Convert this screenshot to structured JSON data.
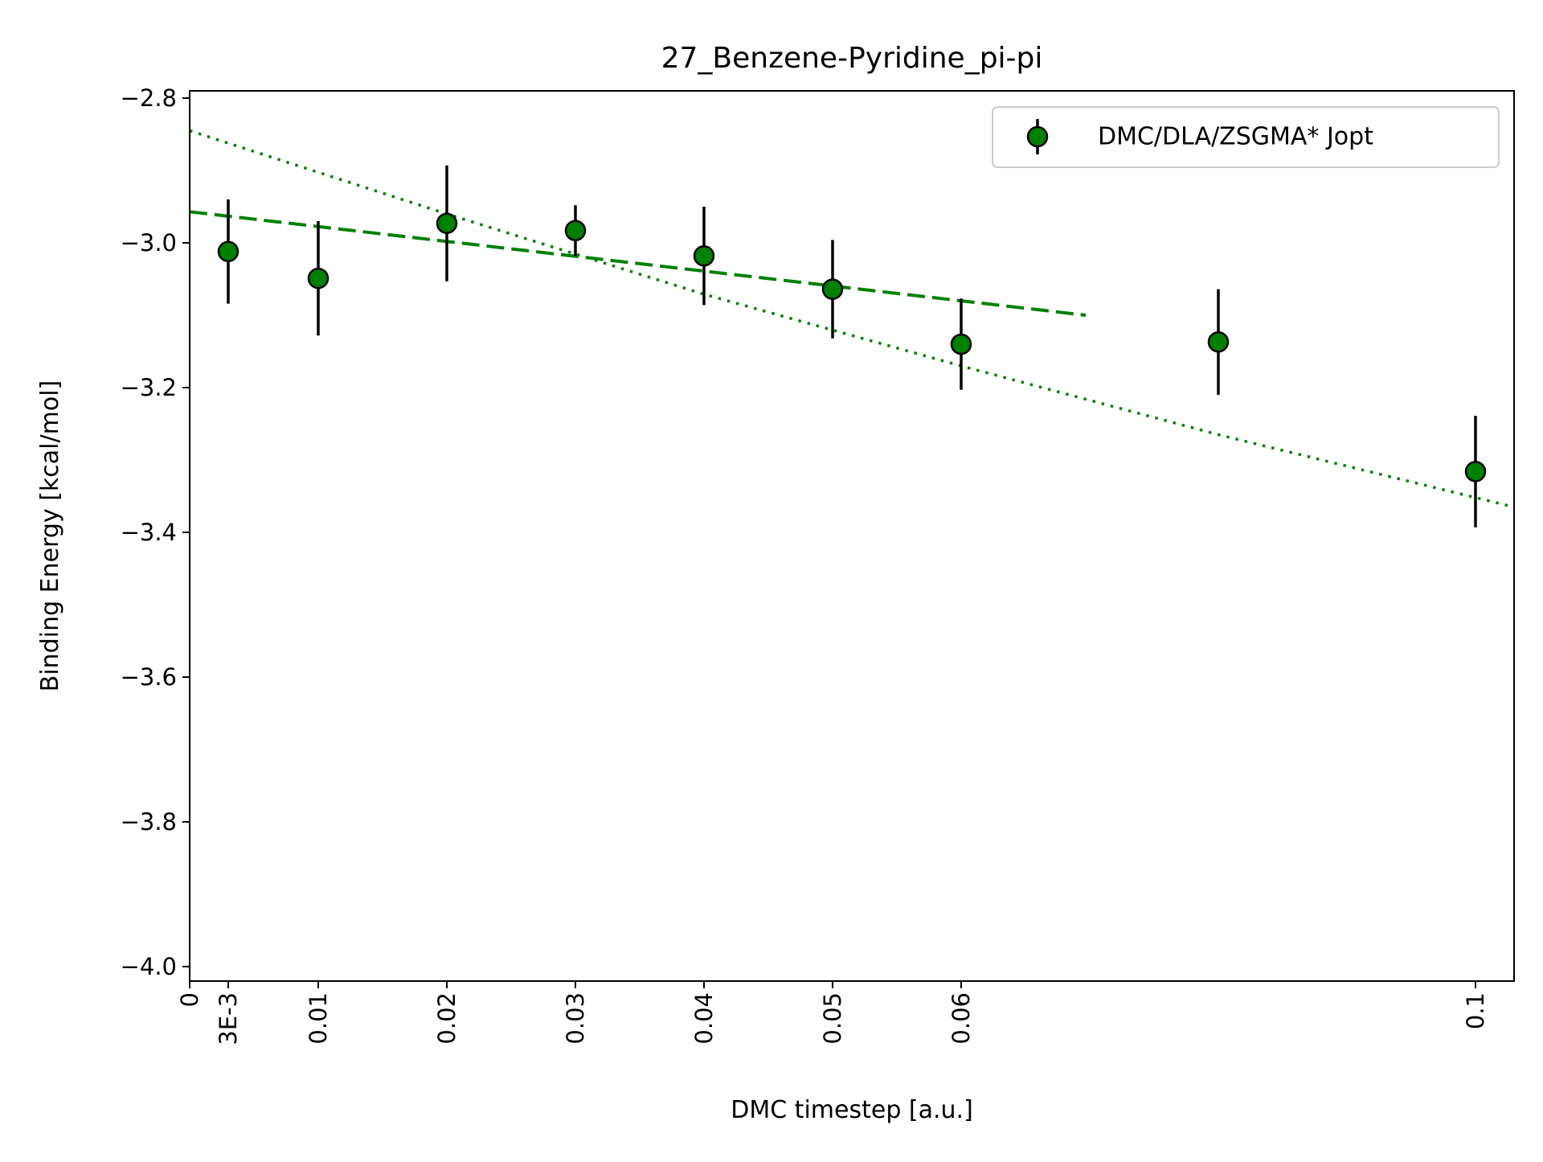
{
  "chart_data": {
    "type": "scatter",
    "title": "27_Benzene-Pyridine_pi-pi",
    "xlabel": "DMC timestep [a.u.]",
    "ylabel": "Binding Energy [kcal/mol]",
    "xlim": [
      0,
      0.103
    ],
    "ylim": [
      -4.02,
      -2.79
    ],
    "xticks": [
      {
        "value": 0,
        "label": "0"
      },
      {
        "value": 0.003,
        "label": "3E-3"
      },
      {
        "value": 0.01,
        "label": "0.01"
      },
      {
        "value": 0.02,
        "label": "0.02"
      },
      {
        "value": 0.03,
        "label": "0.03"
      },
      {
        "value": 0.04,
        "label": "0.04"
      },
      {
        "value": 0.05,
        "label": "0.05"
      },
      {
        "value": 0.06,
        "label": "0.06"
      },
      {
        "value": 0.1,
        "label": "0.1"
      }
    ],
    "yticks": [
      {
        "value": -2.8,
        "label": "−2.8"
      },
      {
        "value": -3.0,
        "label": "−3.0"
      },
      {
        "value": -3.2,
        "label": "−3.2"
      },
      {
        "value": -3.4,
        "label": "−3.4"
      },
      {
        "value": -3.6,
        "label": "−3.6"
      },
      {
        "value": -3.8,
        "label": "−3.8"
      },
      {
        "value": -4.0,
        "label": "−4.0"
      }
    ],
    "series": [
      {
        "name": "DMC/DLA/ZSGMA* Jopt",
        "color": "#008000",
        "edge_color": "#000000",
        "error_color": "#000000",
        "points": [
          {
            "x": 0.003,
            "y": -3.012,
            "err": 0.072
          },
          {
            "x": 0.01,
            "y": -3.049,
            "err": 0.079
          },
          {
            "x": 0.02,
            "y": -2.973,
            "err": 0.08
          },
          {
            "x": 0.03,
            "y": -2.983,
            "err": 0.035
          },
          {
            "x": 0.04,
            "y": -3.018,
            "err": 0.068
          },
          {
            "x": 0.05,
            "y": -3.064,
            "err": 0.068
          },
          {
            "x": 0.06,
            "y": -3.14,
            "err": 0.063
          },
          {
            "x": 0.08,
            "y": -3.137,
            "err": 0.073
          },
          {
            "x": 0.1,
            "y": -3.316,
            "err": 0.077
          }
        ]
      }
    ],
    "fits": [
      {
        "style": "dashed",
        "color": "#008000",
        "x": [
          0,
          0.0697
        ],
        "y": [
          -2.957,
          -3.1
        ]
      },
      {
        "style": "dotted",
        "color": "#008000",
        "x": [
          0,
          0.02,
          0.04,
          0.06,
          0.08,
          0.103
        ],
        "y": [
          -2.845,
          -2.96,
          -3.071,
          -3.17,
          -3.265,
          -3.365
        ]
      }
    ],
    "legend": {
      "position": "top-right"
    },
    "grid": false
  }
}
